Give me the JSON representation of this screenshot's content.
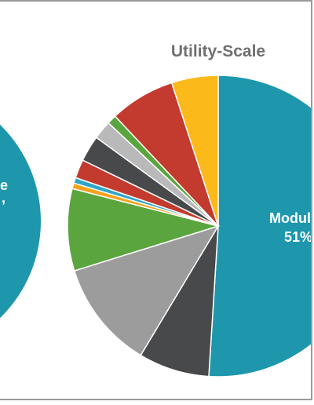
{
  "charts": [
    {
      "type": "pie",
      "title": "",
      "partial": true,
      "slices": [
        {
          "label": "",
          "value": null,
          "color": "#1e97ad"
        }
      ],
      "visible_text_fragments": [
        ",",
        "e"
      ]
    },
    {
      "type": "pie",
      "title": "Utility-Scale",
      "slices": [
        {
          "label": "Modul",
          "value": 51,
          "value_label": "51%",
          "color": "#1e97ad"
        },
        {
          "label": "",
          "value": 7.6,
          "color": "#48494b"
        },
        {
          "label": "",
          "value": 11.6,
          "color": "#9c9c9c"
        },
        {
          "label": "",
          "value": 8.8,
          "color": "#5aa53e"
        },
        {
          "label": "",
          "value": 0.6,
          "color": "#f3a21c"
        },
        {
          "label": "",
          "value": 0.6,
          "color": "#2fa6c9"
        },
        {
          "label": "",
          "value": 2.0,
          "color": "#c33a2e"
        },
        {
          "label": "",
          "value": 2.8,
          "color": "#48494b"
        },
        {
          "label": "",
          "value": 2.0,
          "color": "#b9b9b9"
        },
        {
          "label": "",
          "value": 1.0,
          "color": "#5aa53e"
        },
        {
          "label": "",
          "value": 7.0,
          "color": "#c33a2e"
        },
        {
          "label": "",
          "value": 5.0,
          "color": "#fbba1a"
        }
      ]
    }
  ],
  "chart_data": [
    {
      "type": "pie",
      "title": "",
      "categories": [
        ""
      ],
      "values": [
        null
      ]
    },
    {
      "type": "pie",
      "title": "Utility-Scale",
      "categories": [
        "Modul",
        "",
        "",
        "",
        "",
        "",
        "",
        "",
        "",
        "",
        "",
        ""
      ],
      "values": [
        51,
        7.6,
        11.6,
        8.8,
        0.6,
        0.6,
        2.0,
        2.8,
        2.0,
        1.0,
        7.0,
        5.0
      ],
      "colors": [
        "#1e97ad",
        "#48494b",
        "#9c9c9c",
        "#5aa53e",
        "#f3a21c",
        "#2fa6c9",
        "#c33a2e",
        "#48494b",
        "#b9b9b9",
        "#5aa53e",
        "#c33a2e",
        "#fbba1a"
      ]
    }
  ]
}
